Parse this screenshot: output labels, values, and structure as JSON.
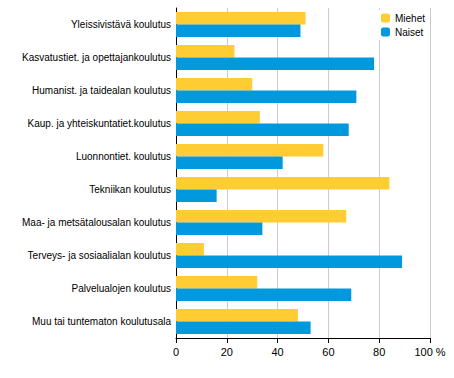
{
  "chart_data": {
    "type": "bar",
    "orientation": "horizontal",
    "categories": [
      "Yleissivistävä koulutus",
      "Kasvatustiet. ja opettajankoulutus",
      "Humanist. ja taidealan koulutus",
      "Kaup. ja yhteiskuntatiet.koulutus",
      "Luonnontiet. koulutus",
      "Tekniikan koulutus",
      "Maa- ja metsätalousalan koulutus",
      "Terveys- ja sosiaalialan koulutus",
      "Palvelualojen koulutus",
      "Muu tai tuntematon koulutusala"
    ],
    "series": [
      {
        "name": "Miehet",
        "color": "#FFCC33",
        "values": [
          51,
          23,
          30,
          33,
          58,
          84,
          67,
          11,
          32,
          48
        ]
      },
      {
        "name": "Naiset",
        "color": "#0099DD",
        "values": [
          49,
          78,
          71,
          68,
          42,
          16,
          34,
          89,
          69,
          53
        ]
      }
    ],
    "xlim": [
      0,
      100
    ],
    "xticks": [
      0,
      20,
      40,
      60,
      80,
      {
        "value": 100,
        "label": "100 %"
      }
    ],
    "grid": true,
    "legend": "top-right"
  }
}
